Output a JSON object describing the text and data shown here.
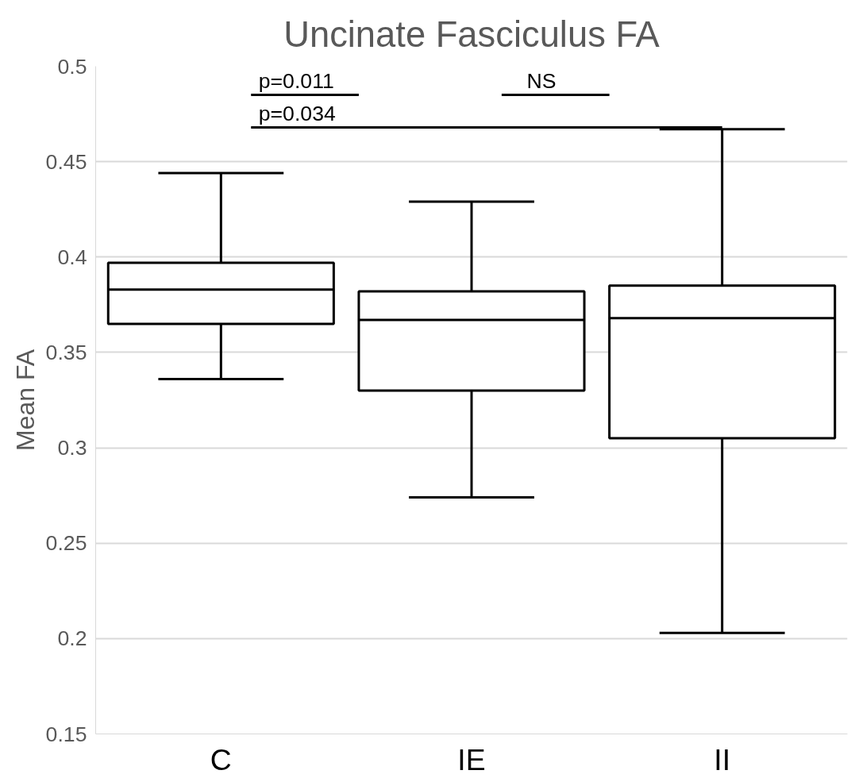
{
  "chart_data": {
    "type": "box",
    "title": "Uncinate Fasciculus FA",
    "ylabel": "Mean FA",
    "categories": [
      "C",
      "IE",
      "II"
    ],
    "boxes": [
      {
        "low": 0.336,
        "q1": 0.365,
        "median": 0.383,
        "q3": 0.397,
        "high": 0.444
      },
      {
        "low": 0.274,
        "q1": 0.33,
        "median": 0.367,
        "q3": 0.382,
        "high": 0.429
      },
      {
        "low": 0.203,
        "q1": 0.305,
        "median": 0.368,
        "q3": 0.385,
        "high": 0.467
      }
    ],
    "ylim": [
      0.15,
      0.5
    ],
    "yticks": [
      0.15,
      0.2,
      0.25,
      0.3,
      0.35,
      0.4,
      0.45,
      0.5
    ],
    "grid": "y",
    "color": "#000000",
    "annotations": [
      "p=0.011",
      "NS",
      "p=0.034"
    ]
  }
}
